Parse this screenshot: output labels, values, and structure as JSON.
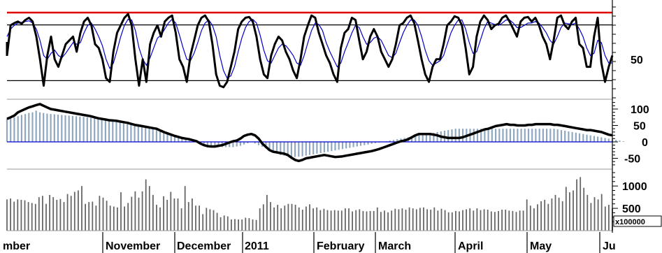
{
  "chart_data": [
    {
      "type": "line",
      "panel": "stochastic-oscillator",
      "ylim": [
        0,
        100
      ],
      "levels": [
        80,
        20
      ],
      "upper_line_value": 100,
      "tick_labels": [
        "50"
      ],
      "colors": {
        "k_line": "#000000",
        "d_line": "#0000cc",
        "upper_line": "#e00000",
        "level_lines": "#000000"
      },
      "series": [
        {
          "values": [
            45,
            85,
            88,
            90,
            87,
            92,
            95,
            90,
            70,
            40,
            5,
            45,
            70,
            40,
            30,
            45,
            60,
            65,
            70,
            50,
            75,
            90,
            95,
            85,
            60,
            55,
            40,
            15,
            10,
            50,
            75,
            85,
            95,
            100,
            85,
            40,
            5,
            40,
            10,
            60,
            75,
            85,
            70,
            90,
            95,
            98,
            75,
            40,
            30,
            10,
            45,
            65,
            85,
            95,
            98,
            90,
            60,
            20,
            5,
            3,
            10,
            30,
            50,
            80,
            90,
            95,
            96,
            90,
            70,
            40,
            20,
            15,
            45,
            60,
            70,
            65,
            50,
            40,
            25,
            15,
            40,
            70,
            85,
            98,
            95,
            75,
            60,
            45,
            35,
            20,
            10,
            55,
            75,
            80,
            95,
            92,
            65,
            40,
            50,
            70,
            80,
            70,
            50,
            40,
            30,
            40,
            60,
            85,
            88,
            95,
            98,
            88,
            65,
            40,
            20,
            10,
            30,
            40,
            40,
            60,
            85,
            90,
            97,
            95,
            85,
            55,
            20,
            30,
            70,
            90,
            98,
            92,
            80,
            85,
            87,
            95,
            98,
            90,
            80,
            70,
            90,
            95,
            96,
            90,
            95,
            85,
            70,
            60,
            40,
            65,
            95,
            98,
            85,
            80,
            90,
            95,
            60,
            55,
            30,
            30,
            70,
            95,
            35,
            10,
            30,
            45
          ]
        },
        {
          "values": [
            70,
            80,
            85,
            88,
            89,
            90,
            91,
            88,
            80,
            65,
            45,
            40,
            48,
            52,
            45,
            42,
            48,
            55,
            62,
            60,
            62,
            75,
            85,
            88,
            80,
            70,
            58,
            40,
            28,
            35,
            52,
            70,
            85,
            93,
            92,
            78,
            55,
            40,
            32,
            42,
            55,
            68,
            72,
            80,
            88,
            93,
            88,
            72,
            55,
            40,
            38,
            48,
            62,
            78,
            88,
            92,
            85,
            70,
            45,
            25,
            15,
            18,
            30,
            50,
            68,
            82,
            90,
            93,
            88,
            72,
            52,
            38,
            35,
            45,
            55,
            60,
            58,
            52,
            45,
            35,
            32,
            45,
            62,
            78,
            88,
            86,
            78,
            62,
            50,
            40,
            30,
            35,
            50,
            62,
            75,
            85,
            82,
            70,
            60,
            62,
            68,
            70,
            65,
            55,
            45,
            42,
            48,
            62,
            75,
            85,
            92,
            92,
            85,
            70,
            52,
            38,
            32,
            35,
            38,
            45,
            60,
            75,
            85,
            92,
            92,
            80,
            62,
            48,
            50,
            65,
            80,
            90,
            88,
            86,
            85,
            88,
            92,
            92,
            88,
            82,
            82,
            85,
            88,
            88,
            90,
            88,
            82,
            75,
            65,
            60,
            70,
            82,
            88,
            87,
            86,
            88,
            80,
            70,
            55,
            45,
            48,
            65,
            62,
            45,
            35,
            35
          ]
        }
      ]
    },
    {
      "type": "bar",
      "panel": "macd",
      "ylim": [
        -80,
        130
      ],
      "yticks": [
        100,
        50,
        0,
        -50
      ],
      "colors": {
        "line": "#000000",
        "histogram": "#8fa8c0",
        "zero_line": "#0000cc"
      },
      "series": [
        {
          "values": [
            70,
            75,
            80,
            90,
            95,
            100,
            105,
            108,
            112,
            115,
            110,
            105,
            100,
            98,
            96,
            94,
            92,
            90,
            88,
            86,
            84,
            82,
            80,
            78,
            75,
            72,
            70,
            68,
            66,
            65,
            64,
            62,
            60,
            58,
            55,
            52,
            50,
            48,
            46,
            44,
            42,
            40,
            35,
            30,
            26,
            22,
            18,
            15,
            12,
            10,
            8,
            5,
            2,
            -5,
            -10,
            -13,
            -14,
            -14,
            -12,
            -10,
            -6,
            -2,
            2,
            4,
            10,
            18,
            22,
            24,
            20,
            10,
            -5,
            -15,
            -25,
            -30,
            -32,
            -34,
            -36,
            -40,
            -48,
            -55,
            -58,
            -55,
            -50,
            -48,
            -46,
            -44,
            -42,
            -40,
            -42,
            -44,
            -46,
            -45,
            -44,
            -42,
            -40,
            -38,
            -36,
            -34,
            -32,
            -30,
            -28,
            -25,
            -22,
            -18,
            -14,
            -10,
            -6,
            -2,
            2,
            4,
            8,
            14,
            20,
            24,
            24,
            24,
            24,
            22,
            20,
            16,
            14,
            12,
            12,
            12,
            12,
            14,
            18,
            22,
            26,
            30,
            34,
            38,
            40,
            44,
            48,
            50,
            52,
            54,
            52,
            52,
            50,
            50,
            50,
            52,
            52,
            54,
            54,
            54,
            54,
            54,
            52,
            52,
            50,
            48,
            46,
            44,
            42,
            40,
            38,
            36,
            36,
            34,
            32,
            30,
            26,
            22,
            20
          ]
        },
        {
          "values": [
            70,
            72,
            75,
            78,
            82,
            85,
            88,
            90,
            95,
            90,
            88,
            86,
            85,
            84,
            83,
            82,
            81,
            80,
            79,
            78,
            77,
            76,
            75,
            74,
            72,
            70,
            68,
            66,
            64,
            62,
            60,
            58,
            56,
            54,
            52,
            50,
            48,
            46,
            44,
            42,
            40,
            38,
            35,
            32,
            28,
            24,
            20,
            16,
            12,
            8,
            4,
            0,
            -2,
            -5,
            -8,
            -10,
            -12,
            -14,
            -15,
            -16,
            -16,
            -16,
            -16,
            -14,
            -12,
            -8,
            -4,
            0,
            -5,
            -10,
            -15,
            -20,
            -25,
            -30,
            -35,
            -40,
            -42,
            -44,
            -45,
            -46,
            -45,
            -44,
            -42,
            -40,
            -38,
            -36,
            -34,
            -32,
            -30,
            -28,
            -26,
            -24,
            -22,
            -20,
            -18,
            -16,
            -14,
            -12,
            -10,
            -8,
            -6,
            -4,
            -2,
            0,
            2,
            4,
            6,
            8,
            10,
            12,
            14,
            16,
            18,
            20,
            22,
            24,
            26,
            28,
            30,
            32,
            34,
            36,
            38,
            40,
            40,
            40,
            40,
            40,
            40,
            40,
            40,
            40,
            40,
            40,
            40,
            40,
            40,
            40,
            40,
            40,
            40,
            40,
            40,
            40,
            40,
            40,
            40,
            40,
            40,
            40,
            40,
            38,
            36,
            34,
            32,
            30,
            28,
            26,
            24,
            22,
            20,
            18,
            16,
            14,
            12,
            10,
            8,
            6,
            4,
            2
          ]
        }
      ]
    },
    {
      "type": "bar",
      "panel": "volume",
      "ylim": [
        0,
        1500
      ],
      "yticks": [
        1000,
        500
      ],
      "unit_label": "x100000",
      "colors": {
        "bars": "#666666"
      },
      "series": [
        {
          "values": [
            700,
            720,
            650,
            700,
            690,
            680,
            640,
            620,
            600,
            750,
            780,
            600,
            800,
            750,
            690,
            710,
            640,
            820,
            780,
            870,
            900,
            1000,
            600,
            640,
            650,
            560,
            780,
            740,
            670,
            560,
            540,
            520,
            860,
            540,
            620,
            760,
            880,
            740,
            880,
            1150,
            1000,
            800,
            580,
            520,
            770,
            690,
            870,
            720,
            720,
            500,
            1000,
            640,
            720,
            560,
            560,
            370,
            510,
            480,
            460,
            400,
            300,
            340,
            320,
            250,
            260,
            250,
            250,
            290,
            280,
            250,
            240,
            500,
            590,
            800,
            640,
            520,
            580,
            500,
            560,
            600,
            600,
            580,
            520,
            470,
            540,
            590,
            500,
            520,
            460,
            490,
            460,
            450,
            460,
            450,
            450,
            500,
            500,
            430,
            460,
            480,
            440,
            430,
            440,
            440,
            520,
            420,
            450,
            410,
            450,
            490,
            480,
            500,
            470,
            520,
            500,
            480,
            510,
            520,
            480,
            470,
            520,
            450,
            490,
            460,
            410,
            410,
            440,
            430,
            460,
            480,
            500,
            450,
            500,
            460,
            480,
            470,
            430,
            420,
            440,
            470,
            470,
            450,
            440,
            420,
            450,
            450,
            700,
            560,
            500,
            590,
            660,
            690,
            600,
            720,
            800,
            740,
            660,
            980,
            860,
            900,
            1150,
            1200,
            960,
            800,
            620,
            750,
            700,
            820,
            540,
            580,
            500
          ]
        }
      ]
    }
  ],
  "x_axis": {
    "labels": [
      "mber",
      "November",
      "December",
      "2011",
      "February",
      "March",
      "April",
      "May",
      "Ju"
    ]
  }
}
